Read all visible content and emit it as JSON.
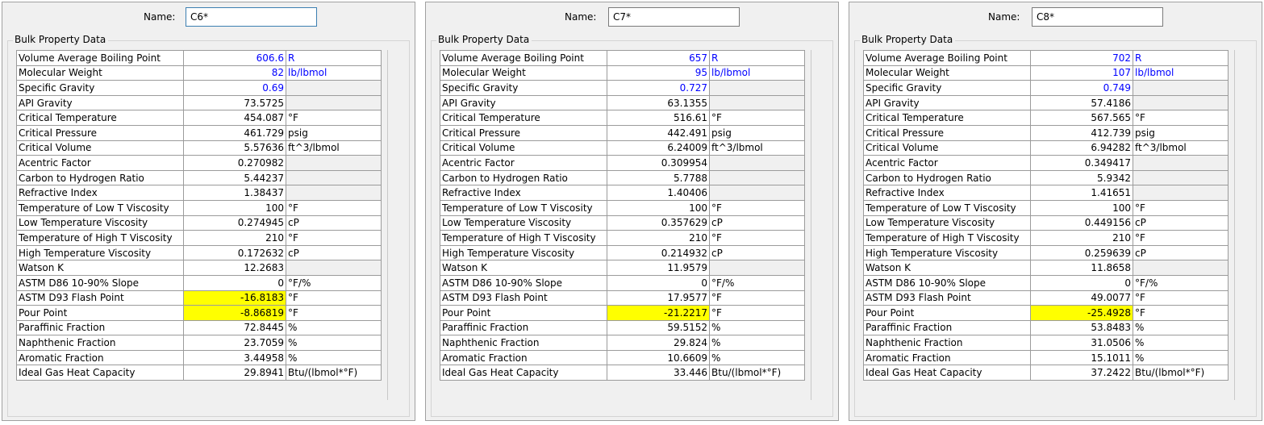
{
  "panels": [
    {
      "name_label": "Name:",
      "name_value": "C6*",
      "group_title": "Bulk Property Data",
      "rows": [
        {
          "label": "Volume Average Boiling Point",
          "value": "606.6",
          "unit": "R",
          "style": "blue"
        },
        {
          "label": "Molecular Weight",
          "value": "82",
          "unit": "lb/lbmol",
          "style": "blue"
        },
        {
          "label": "Specific Gravity",
          "value": "0.69",
          "unit": "",
          "style": "blue"
        },
        {
          "label": "API Gravity",
          "value": "73.5725",
          "unit": "",
          "style": ""
        },
        {
          "label": "Critical Temperature",
          "value": "454.087",
          "unit": "°F",
          "style": ""
        },
        {
          "label": "Critical Pressure",
          "value": "461.729",
          "unit": "psig",
          "style": ""
        },
        {
          "label": "Critical Volume",
          "value": "5.57636",
          "unit": "ft^3/lbmol",
          "style": ""
        },
        {
          "label": "Acentric Factor",
          "value": "0.270982",
          "unit": "",
          "style": ""
        },
        {
          "label": "Carbon to Hydrogen Ratio",
          "value": "5.44237",
          "unit": "",
          "style": ""
        },
        {
          "label": "Refractive Index",
          "value": "1.38437",
          "unit": "",
          "style": ""
        },
        {
          "label": "Temperature of Low T Viscosity",
          "value": "100",
          "unit": "°F",
          "style": ""
        },
        {
          "label": "Low Temperature Viscosity",
          "value": "0.274945",
          "unit": "cP",
          "style": ""
        },
        {
          "label": "Temperature of High T Viscosity",
          "value": "210",
          "unit": "°F",
          "style": ""
        },
        {
          "label": "High Temperature Viscosity",
          "value": "0.172632",
          "unit": "cP",
          "style": ""
        },
        {
          "label": "Watson K",
          "value": "12.2683",
          "unit": "",
          "style": ""
        },
        {
          "label": "ASTM D86 10-90% Slope",
          "value": "0",
          "unit": "°F/%",
          "style": ""
        },
        {
          "label": "ASTM D93 Flash Point",
          "value": "-16.8183",
          "unit": "°F",
          "style": "hl"
        },
        {
          "label": "Pour Point",
          "value": "-8.86819",
          "unit": "°F",
          "style": "hl"
        },
        {
          "label": "Paraffinic Fraction",
          "value": "72.8445",
          "unit": "%",
          "style": ""
        },
        {
          "label": "Naphthenic Fraction",
          "value": "23.7059",
          "unit": "%",
          "style": ""
        },
        {
          "label": "Aromatic Fraction",
          "value": "3.44958",
          "unit": "%",
          "style": ""
        },
        {
          "label": "Ideal Gas Heat Capacity",
          "value": "29.8941",
          "unit": "Btu/(lbmol*°F)",
          "style": ""
        }
      ]
    },
    {
      "name_label": "Name:",
      "name_value": "C7*",
      "group_title": "Bulk Property Data",
      "rows": [
        {
          "label": "Volume Average Boiling Point",
          "value": "657",
          "unit": "R",
          "style": "blue"
        },
        {
          "label": "Molecular Weight",
          "value": "95",
          "unit": "lb/lbmol",
          "style": "blue"
        },
        {
          "label": "Specific Gravity",
          "value": "0.727",
          "unit": "",
          "style": "blue"
        },
        {
          "label": "API Gravity",
          "value": "63.1355",
          "unit": "",
          "style": ""
        },
        {
          "label": "Critical Temperature",
          "value": "516.61",
          "unit": "°F",
          "style": ""
        },
        {
          "label": "Critical Pressure",
          "value": "442.491",
          "unit": "psig",
          "style": ""
        },
        {
          "label": "Critical Volume",
          "value": "6.24009",
          "unit": "ft^3/lbmol",
          "style": ""
        },
        {
          "label": "Acentric Factor",
          "value": "0.309954",
          "unit": "",
          "style": ""
        },
        {
          "label": "Carbon to Hydrogen Ratio",
          "value": "5.7788",
          "unit": "",
          "style": ""
        },
        {
          "label": "Refractive Index",
          "value": "1.40406",
          "unit": "",
          "style": ""
        },
        {
          "label": "Temperature of Low T Viscosity",
          "value": "100",
          "unit": "°F",
          "style": ""
        },
        {
          "label": "Low Temperature Viscosity",
          "value": "0.357629",
          "unit": "cP",
          "style": ""
        },
        {
          "label": "Temperature of High T Viscosity",
          "value": "210",
          "unit": "°F",
          "style": ""
        },
        {
          "label": "High Temperature Viscosity",
          "value": "0.214932",
          "unit": "cP",
          "style": ""
        },
        {
          "label": "Watson K",
          "value": "11.9579",
          "unit": "",
          "style": ""
        },
        {
          "label": "ASTM D86 10-90% Slope",
          "value": "0",
          "unit": "°F/%",
          "style": ""
        },
        {
          "label": "ASTM D93 Flash Point",
          "value": "17.9577",
          "unit": "°F",
          "style": ""
        },
        {
          "label": "Pour Point",
          "value": "-21.2217",
          "unit": "°F",
          "style": "hl"
        },
        {
          "label": "Paraffinic Fraction",
          "value": "59.5152",
          "unit": "%",
          "style": ""
        },
        {
          "label": "Naphthenic Fraction",
          "value": "29.824",
          "unit": "%",
          "style": ""
        },
        {
          "label": "Aromatic Fraction",
          "value": "10.6609",
          "unit": "%",
          "style": ""
        },
        {
          "label": "Ideal Gas Heat Capacity",
          "value": "33.446",
          "unit": "Btu/(lbmol*°F)",
          "style": ""
        }
      ]
    },
    {
      "name_label": "Name:",
      "name_value": "C8*",
      "group_title": "Bulk Property Data",
      "rows": [
        {
          "label": "Volume Average Boiling Point",
          "value": "702",
          "unit": "R",
          "style": "blue"
        },
        {
          "label": "Molecular Weight",
          "value": "107",
          "unit": "lb/lbmol",
          "style": "blue"
        },
        {
          "label": "Specific Gravity",
          "value": "0.749",
          "unit": "",
          "style": "blue"
        },
        {
          "label": "API Gravity",
          "value": "57.4186",
          "unit": "",
          "style": ""
        },
        {
          "label": "Critical Temperature",
          "value": "567.565",
          "unit": "°F",
          "style": ""
        },
        {
          "label": "Critical Pressure",
          "value": "412.739",
          "unit": "psig",
          "style": ""
        },
        {
          "label": "Critical Volume",
          "value": "6.94282",
          "unit": "ft^3/lbmol",
          "style": ""
        },
        {
          "label": "Acentric Factor",
          "value": "0.349417",
          "unit": "",
          "style": ""
        },
        {
          "label": "Carbon to Hydrogen Ratio",
          "value": "5.9342",
          "unit": "",
          "style": ""
        },
        {
          "label": "Refractive Index",
          "value": "1.41651",
          "unit": "",
          "style": ""
        },
        {
          "label": "Temperature of Low T Viscosity",
          "value": "100",
          "unit": "°F",
          "style": ""
        },
        {
          "label": "Low Temperature Viscosity",
          "value": "0.449156",
          "unit": "cP",
          "style": ""
        },
        {
          "label": "Temperature of High T Viscosity",
          "value": "210",
          "unit": "°F",
          "style": ""
        },
        {
          "label": "High Temperature Viscosity",
          "value": "0.259639",
          "unit": "cP",
          "style": ""
        },
        {
          "label": "Watson K",
          "value": "11.8658",
          "unit": "",
          "style": ""
        },
        {
          "label": "ASTM D86 10-90% Slope",
          "value": "0",
          "unit": "°F/%",
          "style": ""
        },
        {
          "label": "ASTM D93 Flash Point",
          "value": "49.0077",
          "unit": "°F",
          "style": ""
        },
        {
          "label": "Pour Point",
          "value": "-25.4928",
          "unit": "°F",
          "style": "hl"
        },
        {
          "label": "Paraffinic Fraction",
          "value": "53.8483",
          "unit": "%",
          "style": ""
        },
        {
          "label": "Naphthenic Fraction",
          "value": "31.0506",
          "unit": "%",
          "style": ""
        },
        {
          "label": "Aromatic Fraction",
          "value": "15.1011",
          "unit": "%",
          "style": ""
        },
        {
          "label": "Ideal Gas Heat Capacity",
          "value": "37.2422",
          "unit": "Btu/(lbmol*°F)",
          "style": ""
        }
      ]
    }
  ],
  "colors": {
    "user_input": "#0000ff",
    "highlight": "#ffff00",
    "panel_bg": "#f0f0f0"
  }
}
